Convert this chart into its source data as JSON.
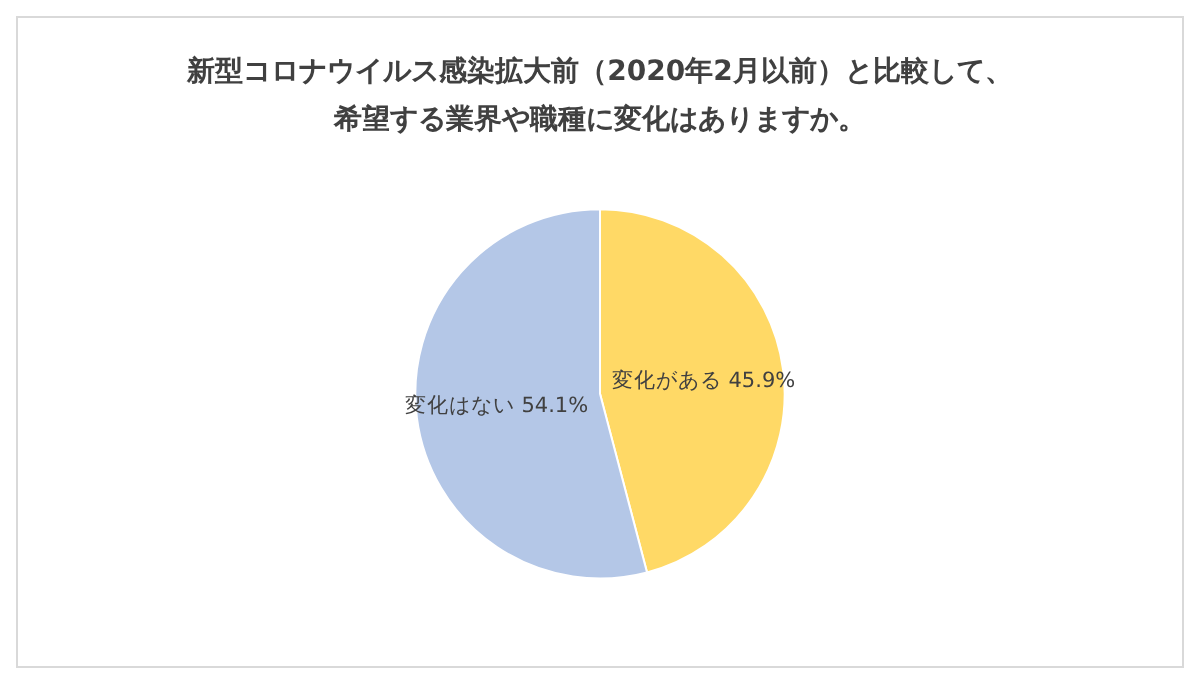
{
  "chart_data": {
    "type": "pie",
    "title": "新型コロナウイルス感染拡大前（2020年2月以前）と比較して、希望する業界や職種に変化はありますか。",
    "categories": [
      "変化がある",
      "変化はない"
    ],
    "values": [
      45.9,
      54.1
    ],
    "colors": [
      "#ffd966",
      "#b4c7e7"
    ],
    "value_labels": [
      "45.9%",
      "54.1%"
    ],
    "legend": false
  }
}
